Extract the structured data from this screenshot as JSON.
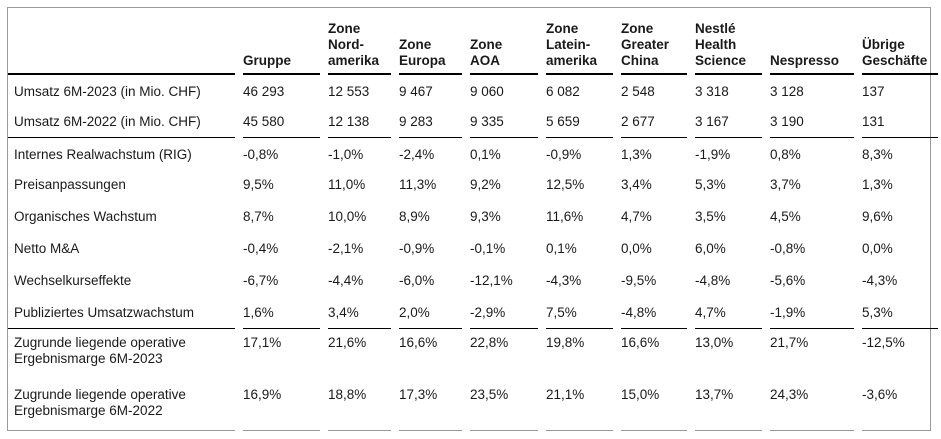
{
  "columns": [
    "Gruppe",
    "Zone Nord-amerika",
    "Zone Europa",
    "Zone AOA",
    "Zone Latein-amerika",
    "Zone Greater China",
    "Nestlé Health Science",
    "Nespresso",
    "Übrige Geschäfte"
  ],
  "column_lines": [
    [
      "Gruppe"
    ],
    [
      "Zone",
      "Nord-",
      "amerika"
    ],
    [
      "Zone",
      "Europa"
    ],
    [
      "Zone",
      "AOA"
    ],
    [
      "Zone",
      "Latein-",
      "amerika"
    ],
    [
      "Zone",
      "Greater",
      "China"
    ],
    [
      "Nestlé",
      "Health",
      "Science"
    ],
    [
      "Nespresso"
    ],
    [
      "Übrige",
      "Geschäfte"
    ]
  ],
  "rows": [
    {
      "label": "Umsatz 6M-2023 (in Mio. CHF)",
      "values": [
        "46 293",
        "12 553",
        "9 467",
        "9 060",
        "6 082",
        "2 548",
        "3 318",
        "3 128",
        "137"
      ]
    },
    {
      "label": "Umsatz 6M-2022 (in Mio. CHF)",
      "values": [
        "45 580",
        "12 138",
        "9 283",
        "9 335",
        "5 659",
        "2 677",
        "3 167",
        "3 190",
        "131"
      ]
    },
    {
      "label": "Internes Realwachstum (RIG)",
      "values": [
        "-0,8%",
        "-1,0%",
        "-2,4%",
        "0,1%",
        "-0,9%",
        "1,3%",
        "-1,9%",
        "0,8%",
        "8,3%"
      ]
    },
    {
      "label": "Preisanpassungen",
      "values": [
        "9,5%",
        "11,0%",
        "11,3%",
        "9,2%",
        "12,5%",
        "3,4%",
        "5,3%",
        "3,7%",
        "1,3%"
      ]
    },
    {
      "label": "Organisches Wachstum",
      "values": [
        "8,7%",
        "10,0%",
        "8,9%",
        "9,3%",
        "11,6%",
        "4,7%",
        "3,5%",
        "4,5%",
        "9,6%"
      ]
    },
    {
      "label": "Netto M&A",
      "values": [
        "-0,4%",
        "-2,1%",
        "-0,9%",
        "-0,1%",
        "0,1%",
        "0,0%",
        "6,0%",
        "-0,8%",
        "0,0%"
      ]
    },
    {
      "label": "Wechselkurseffekte",
      "values": [
        "-6,7%",
        "-4,4%",
        "-6,0%",
        "-12,1%",
        "-4,3%",
        "-9,5%",
        "-4,8%",
        "-5,6%",
        "-4,3%"
      ]
    },
    {
      "label": "Publiziertes Umsatzwachstum",
      "values": [
        "1,6%",
        "3,4%",
        "2,0%",
        "-2,9%",
        "7,5%",
        "-4,8%",
        "4,7%",
        "-1,9%",
        "5,3%"
      ]
    },
    {
      "label": "Zugrunde liegende operative Ergebnismarge 6M-2023",
      "label_lines": [
        "Zugrunde liegende operative",
        "Ergebnismarge 6M-2023"
      ],
      "values": [
        "17,1%",
        "21,6%",
        "16,6%",
        "22,8%",
        "19,8%",
        "16,6%",
        "13,0%",
        "21,7%",
        "-12,5%"
      ]
    },
    {
      "label": "Zugrunde liegende operative Ergebnismarge 6M-2022",
      "label_lines": [
        "Zugrunde liegende operative",
        "Ergebnismarge 6M-2022"
      ],
      "values": [
        "16,9%",
        "18,8%",
        "17,3%",
        "23,5%",
        "21,1%",
        "15,0%",
        "13,7%",
        "24,3%",
        "-3,6%"
      ]
    }
  ]
}
